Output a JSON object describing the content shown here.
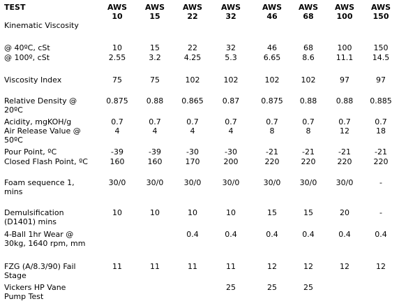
{
  "header": {
    "test_label": "TEST",
    "grades": [
      {
        "line1": "AWS",
        "line2": "10"
      },
      {
        "line1": "AWS",
        "line2": "15"
      },
      {
        "line1": "AWS",
        "line2": "22"
      },
      {
        "line1": "AWS",
        "line2": "32"
      },
      {
        "line1": "AWS",
        "line2": "46"
      },
      {
        "line1": "AWS",
        "line2": "68"
      },
      {
        "line1": "AWS",
        "line2": "100"
      },
      {
        "line1": "AWS",
        "line2": "150"
      }
    ]
  },
  "rows": [
    {
      "label": "Kinematic Viscosity",
      "values": [
        "",
        "",
        "",
        "",
        "",
        "",
        "",
        ""
      ]
    },
    {
      "label": " @ 40ºC, cSt",
      "values": [
        "10",
        "15",
        "22",
        "32",
        "46",
        "68",
        "100",
        "150"
      ]
    },
    {
      "label": " @ 100º, cSt",
      "values": [
        "2.55",
        "3.2",
        "4.25",
        "5.3",
        "6.65",
        "8.6",
        "11.1",
        "14.5"
      ]
    },
    {
      "label": "Viscosity Index",
      "values": [
        "75",
        "75",
        "102",
        "102",
        "102",
        "102",
        "97",
        "97"
      ]
    },
    {
      "label": "Relative Density @ 20ºC",
      "values": [
        "0.875",
        "0.88",
        "0.865",
        "0.87",
        "0.875",
        "0.88",
        "0.88",
        "0.885"
      ]
    },
    {
      "label": "Acidity, mgKOH/g",
      "values": [
        "0.7",
        "0.7",
        "0.7",
        "0.7",
        "0.7",
        "0.7",
        "0.7",
        "0.7"
      ]
    },
    {
      "label": "Air Release Value @ 50ºC",
      "values": [
        "4",
        "4",
        "4",
        "4",
        "8",
        "8",
        "12",
        "18"
      ]
    },
    {
      "label": "Pour Point, ºC",
      "values": [
        "-39",
        "-39",
        "-30",
        "-30",
        "-21",
        "-21",
        "-21",
        "-21"
      ]
    },
    {
      "label": "Closed Flash Point, ºC",
      "values": [
        "160",
        "160",
        "170",
        "200",
        "220",
        "220",
        "220",
        "220"
      ]
    },
    {
      "label": "Foam sequence 1, mins",
      "values": [
        "30/0",
        "30/0",
        "30/0",
        "30/0",
        "30/0",
        "30/0",
        "30/0",
        "-"
      ]
    },
    {
      "label": "Demulsification (D1401) mins",
      "values": [
        "10",
        "10",
        "10",
        "10",
        "15",
        "15",
        "20",
        "-"
      ]
    },
    {
      "label": "4-Ball 1hr Wear @ 30kg, 1640 rpm, mm",
      "values": [
        "",
        "",
        "0.4",
        "0.4",
        "0.4",
        "0.4",
        "0.4",
        "0.4"
      ]
    },
    {
      "label": "FZG (A/8.3/90) Fail Stage",
      "values": [
        "11",
        "11",
        "11",
        "11",
        "12",
        "12",
        "12",
        "12"
      ]
    },
    {
      "label": "Vickers HP Vane Pump Test",
      "values": [
        "",
        "",
        "",
        "25",
        "25",
        "25",
        "",
        ""
      ]
    }
  ]
}
